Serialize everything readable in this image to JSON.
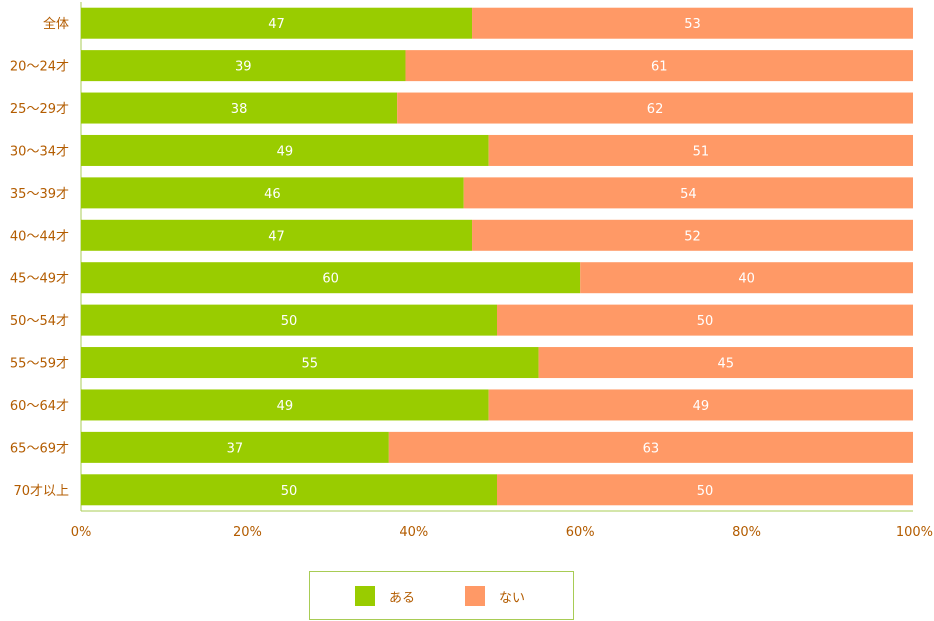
{
  "chart_data": {
    "type": "bar",
    "orientation": "horizontal",
    "stacked": true,
    "percent": true,
    "categories": [
      "全体",
      "20～24才",
      "25～29才",
      "30～34才",
      "35～39才",
      "40～44才",
      "45～49才",
      "50～54才",
      "55～59才",
      "60～64才",
      "65～69才",
      "70才以上"
    ],
    "series": [
      {
        "name": "ある",
        "color": "#99cc00",
        "values": [
          47,
          39,
          38,
          49,
          46,
          47,
          60,
          50,
          55,
          49,
          37,
          50
        ]
      },
      {
        "name": "ない",
        "color": "#ff9966",
        "values": [
          53,
          61,
          62,
          51,
          54,
          52,
          40,
          50,
          45,
          49,
          63,
          50
        ]
      }
    ],
    "xlim": [
      0,
      100
    ],
    "x_ticks": [
      "0%",
      "20%",
      "40%",
      "60%",
      "80%",
      "100%"
    ],
    "grid": false,
    "legend": "bottom-center"
  },
  "colors": {
    "axis": "#a8cc55",
    "label_text": "#b35c00",
    "bar_text": "#ffffff"
  }
}
